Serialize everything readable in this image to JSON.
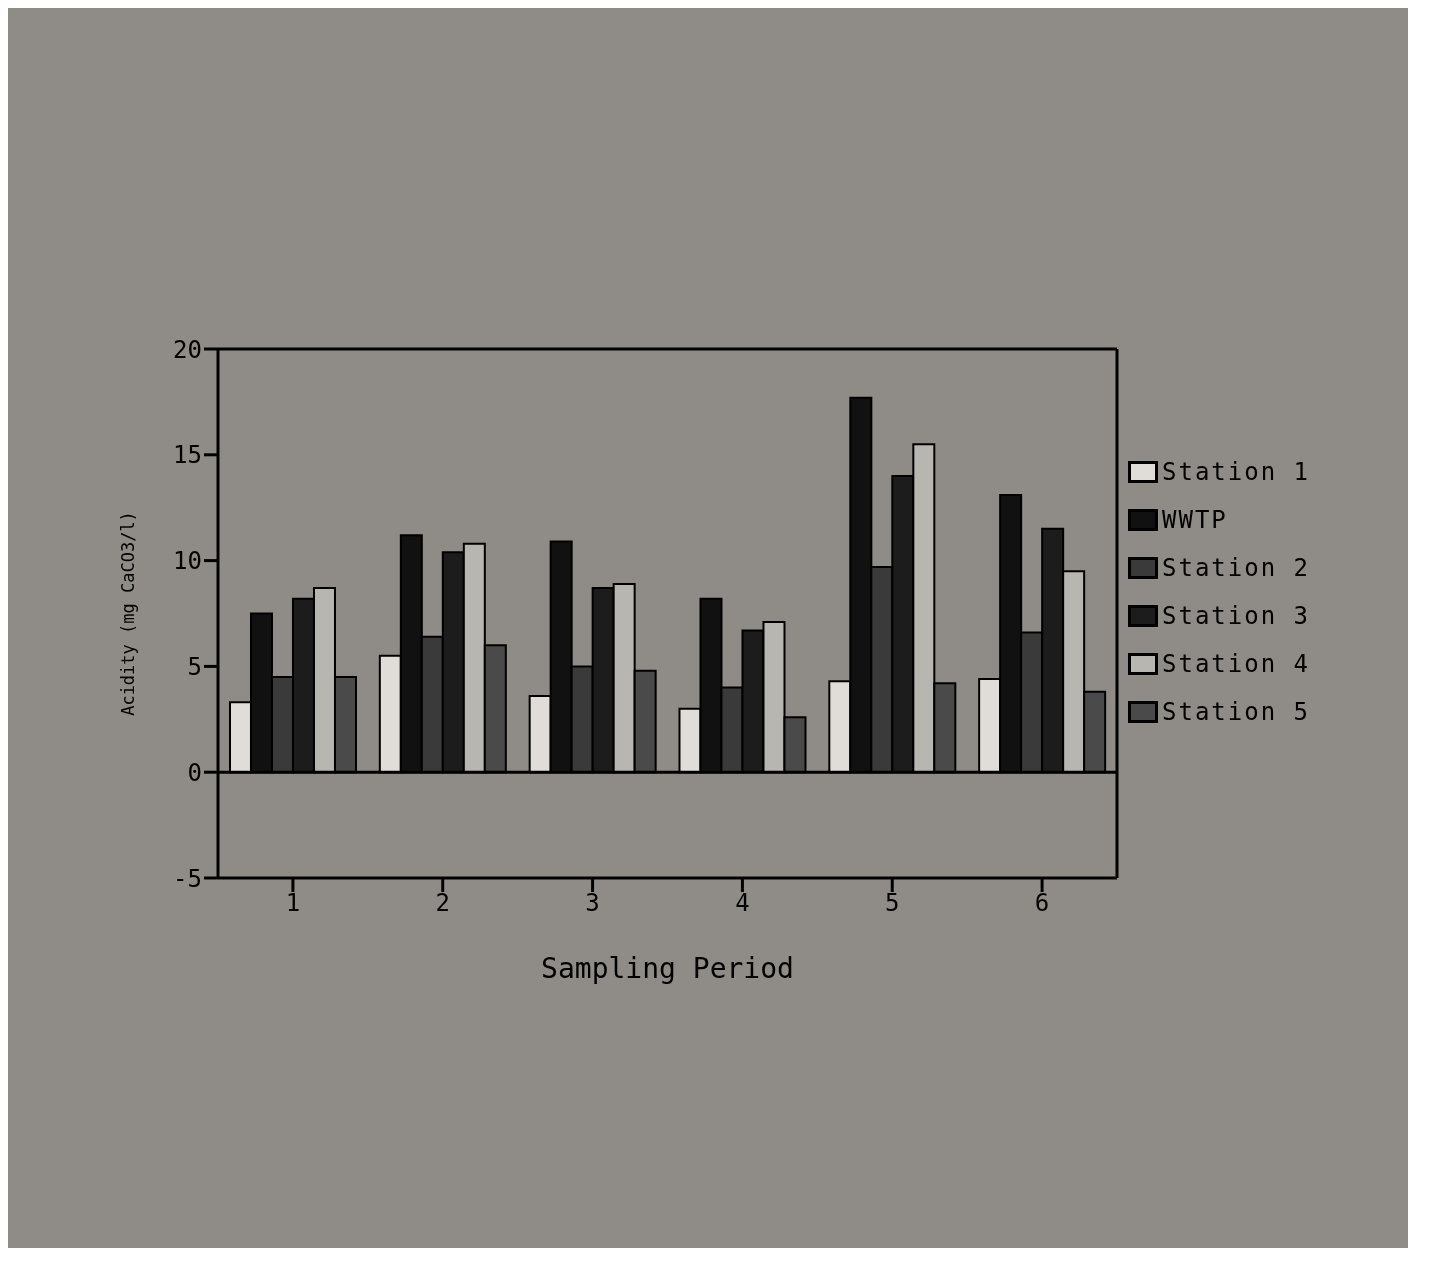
{
  "chart_data": {
    "type": "bar",
    "xlabel": "Sampling Period",
    "ylabel": "Acidity (mg CaCO3/l)",
    "categories": [
      "1",
      "2",
      "3",
      "4",
      "5",
      "6"
    ],
    "series": [
      {
        "name": "Station 1",
        "color": "#e0ddd8",
        "values": [
          3.3,
          5.5,
          3.6,
          3.0,
          4.3,
          4.4
        ]
      },
      {
        "name": "WWTP",
        "color": "#111111",
        "values": [
          7.5,
          11.2,
          10.9,
          8.2,
          17.7,
          13.1
        ]
      },
      {
        "name": "Station 2",
        "color": "#3a3a3a",
        "values": [
          4.5,
          6.4,
          5.0,
          4.0,
          9.7,
          6.6
        ]
      },
      {
        "name": "Station 3",
        "color": "#1c1c1c",
        "values": [
          8.2,
          10.4,
          8.7,
          6.7,
          14.0,
          11.5
        ]
      },
      {
        "name": "Station 4",
        "color": "#b8b6b0",
        "values": [
          8.7,
          10.8,
          8.9,
          7.1,
          15.5,
          9.5
        ]
      },
      {
        "name": "Station 5",
        "color": "#4a4a4a",
        "values": [
          4.5,
          6.0,
          4.8,
          2.6,
          4.2,
          3.8
        ]
      }
    ],
    "ylim": [
      -5,
      20
    ],
    "yticks": [
      -5,
      0,
      5,
      10,
      15,
      20
    ],
    "grid": false,
    "legend": "right",
    "ref_lines": [
      {
        "axis": "y",
        "value": 0
      }
    ]
  }
}
